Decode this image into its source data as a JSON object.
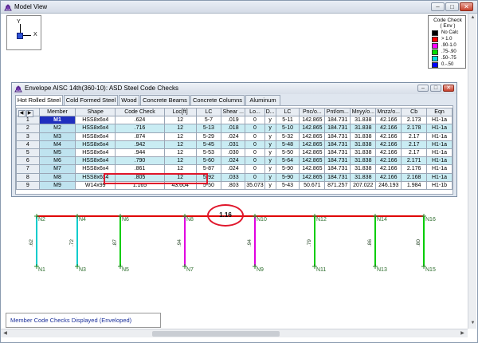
{
  "window": {
    "title": "Model View"
  },
  "axes": {
    "y_label": "Y",
    "x_label": "X"
  },
  "legend": {
    "title_line1": "Code Check",
    "title_line2": "( Env )",
    "items": [
      {
        "label": "No Calc",
        "color": "#000000"
      },
      {
        "label": "> 1.0",
        "color": "#ff0000"
      },
      {
        "label": ".90-1.0",
        "color": "#ff00ff"
      },
      {
        "label": ".75-.90",
        "color": "#00dd00"
      },
      {
        "label": ".50-.75",
        "color": "#00dddd"
      },
      {
        "label": "0.-.50",
        "color": "#0000ff"
      }
    ]
  },
  "spreadsheet": {
    "title": "Envelope AISC 14th(360-10): ASD Steel Code Checks",
    "tabs": [
      "Hot Rolled Steel",
      "Cold Formed Steel",
      "Wood",
      "Concrete Beams",
      "Concrete Columns",
      "Aluminum"
    ],
    "active_tab": 0,
    "columns": [
      "",
      "Member",
      "Shape",
      "Code Check",
      "Loc[ft]",
      "LC",
      "Shear ...",
      "Lo...",
      "D...",
      "LC",
      "Pnc/o...",
      "Pnt/om...",
      "Mnyy/o...",
      "Mnzz/o...",
      "Cb",
      "Eqn"
    ],
    "rows": [
      [
        "1",
        "M1",
        "HSS8x6x4",
        ".624",
        "12",
        "5-7",
        ".019",
        "0",
        "y",
        "5-11",
        "142.865",
        "184.731",
        "31.838",
        "42.166",
        "2.173",
        "H1-1a"
      ],
      [
        "2",
        "M2",
        "HSS8x6x4",
        ".716",
        "12",
        "5-13",
        ".018",
        "0",
        "y",
        "5-10",
        "142.865",
        "184.731",
        "31.838",
        "42.166",
        "2.178",
        "H1-1a"
      ],
      [
        "3",
        "M3",
        "HSS8x6x4",
        ".874",
        "12",
        "5-29",
        ".024",
        "0",
        "y",
        "5-32",
        "142.865",
        "184.731",
        "31.838",
        "42.166",
        "2.17",
        "H1-1a"
      ],
      [
        "4",
        "M4",
        "HSS8x6x4",
        ".942",
        "12",
        "5-45",
        ".031",
        "0",
        "y",
        "5-48",
        "142.865",
        "184.731",
        "31.838",
        "42.166",
        "2.17",
        "H1-1a"
      ],
      [
        "5",
        "M5",
        "HSS8x6x4",
        ".944",
        "12",
        "5-53",
        ".030",
        "0",
        "y",
        "5-50",
        "142.865",
        "184.731",
        "31.838",
        "42.166",
        "2.17",
        "H1-1a"
      ],
      [
        "6",
        "M6",
        "HSS8x6x4",
        ".790",
        "12",
        "5-60",
        ".024",
        "0",
        "y",
        "5-64",
        "142.865",
        "184.731",
        "31.838",
        "42.166",
        "2.171",
        "H1-1a"
      ],
      [
        "7",
        "M7",
        "HSS8x6x4",
        ".861",
        "12",
        "5-87",
        ".024",
        "0",
        "y",
        "5-90",
        "142.865",
        "184.731",
        "31.838",
        "42.166",
        "2.176",
        "H1-1a"
      ],
      [
        "8",
        "M8",
        "HSS8x6x4",
        ".805",
        "12",
        "5-92",
        ".033",
        "0",
        "y",
        "5-90",
        "142.865",
        "184.731",
        "31.838",
        "42.166",
        "2.168",
        "H1-1a"
      ],
      [
        "9",
        "M9",
        "W14x99",
        "1.165",
        "43.604",
        "5-50",
        ".803",
        "35.073",
        "y",
        "5-43",
        "50.671",
        "871.257",
        "207.022",
        "246.193",
        "1.984",
        "H1-1b"
      ]
    ]
  },
  "frame": {
    "beam_value": "1.16",
    "top_nodes": [
      "N2",
      "N4",
      "N6",
      "N8",
      "N10",
      "N12",
      "N14",
      "N16"
    ],
    "bottom_nodes": [
      "N1",
      "N3",
      "N5",
      "N7",
      "N9",
      "N11",
      "N13",
      "N15"
    ],
    "column_values": [
      ".62",
      ".72",
      ".87",
      ".94",
      ".94",
      ".79",
      ".86",
      ".80"
    ],
    "column_colors": [
      "#00cccc",
      "#00cccc",
      "#00cc00",
      "#e000e0",
      "#e000e0",
      "#00cc00",
      "#00cc00",
      "#00cc00"
    ],
    "beam_color": "#e00000"
  },
  "status": {
    "text": "Member Code Checks Displayed (Enveloped)"
  }
}
